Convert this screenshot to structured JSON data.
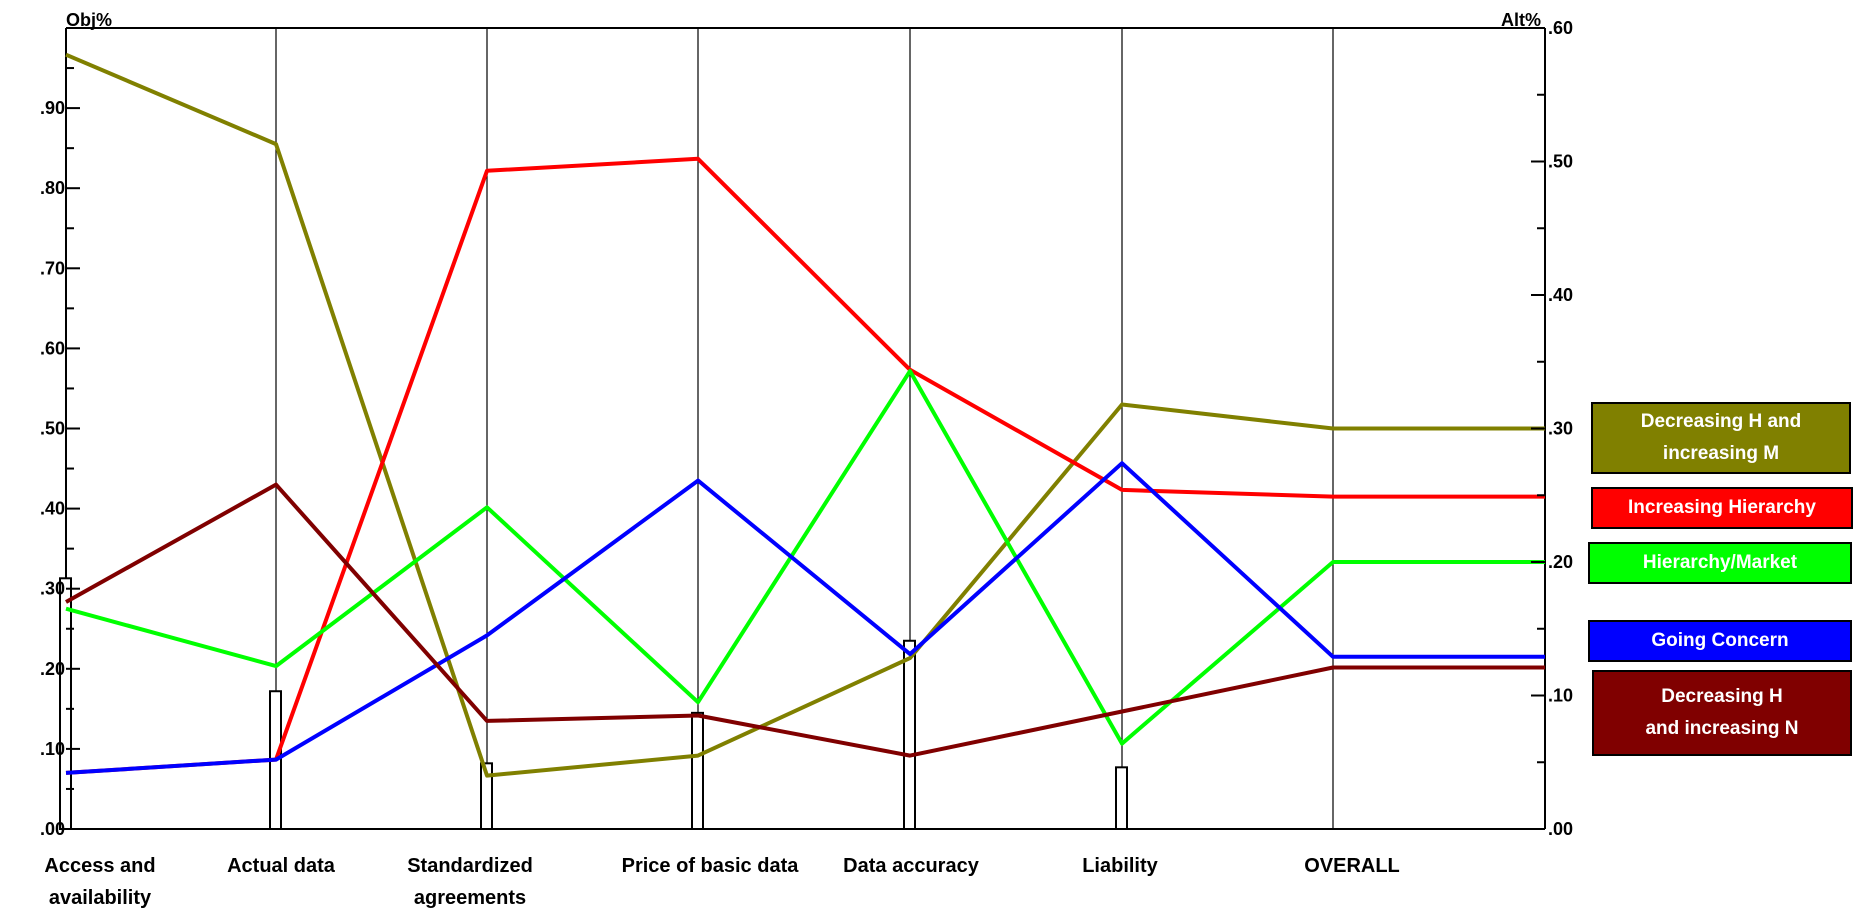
{
  "chart_data": {
    "type": "line",
    "left_axis_title": "Obj%",
    "right_axis_title": "Alt%",
    "left_ticks": [
      ".00",
      ".10",
      ".20",
      ".30",
      ".40",
      ".50",
      ".60",
      ".70",
      ".80",
      ".90"
    ],
    "right_ticks": [
      ".00",
      ".10",
      ".20",
      ".30",
      ".40",
      ".50",
      ".60"
    ],
    "left_ylim": [
      0,
      1.0
    ],
    "right_ylim": [
      0,
      0.6
    ],
    "categories": [
      [
        "Access and",
        "availability"
      ],
      [
        "Actual data"
      ],
      [
        "Standardized",
        "agreements"
      ],
      [
        "Price of basic data"
      ],
      [
        "Data accuracy"
      ],
      [
        "Liability"
      ],
      [
        "OVERALL"
      ]
    ],
    "objective_weights": [
      0.313,
      0.172,
      0.082,
      0.145,
      0.235,
      0.077
    ],
    "series": [
      {
        "name": "Decreasing H and increasing M",
        "color": "#808000",
        "values": [
          0.58,
          0.513,
          0.04,
          0.055,
          0.128,
          0.318,
          0.3
        ]
      },
      {
        "name": "Increasing Hierarchy",
        "color": "#ff0000",
        "values": [
          0.042,
          0.052,
          0.493,
          0.502,
          0.344,
          0.254,
          0.249
        ]
      },
      {
        "name": "Hierarchy/Market",
        "color": "#00ff00",
        "values": [
          0.165,
          0.122,
          0.241,
          0.095,
          0.343,
          0.064,
          0.2
        ]
      },
      {
        "name": "Going Concern",
        "color": "#0000ff",
        "values": [
          0.042,
          0.052,
          0.145,
          0.261,
          0.131,
          0.274,
          0.129
        ]
      },
      {
        "name": "Decreasing H and increasing N",
        "color": "#800000",
        "values": [
          0.17,
          0.258,
          0.081,
          0.085,
          0.055,
          0.088,
          0.121
        ]
      }
    ],
    "legend": [
      {
        "lines": [
          "Decreasing H and",
          "increasing M"
        ],
        "bg": "#808000"
      },
      {
        "lines": [
          "Increasing Hierarchy"
        ],
        "bg": "#ff0000"
      },
      {
        "lines": [
          "Hierarchy/Market"
        ],
        "bg": "#00ff00"
      },
      {
        "lines": [
          "Going Concern"
        ],
        "bg": "#0000ff"
      },
      {
        "lines": [
          "Decreasing H",
          "and increasing N"
        ],
        "bg": "#800000"
      }
    ],
    "grid": false,
    "legend_position": "right"
  }
}
